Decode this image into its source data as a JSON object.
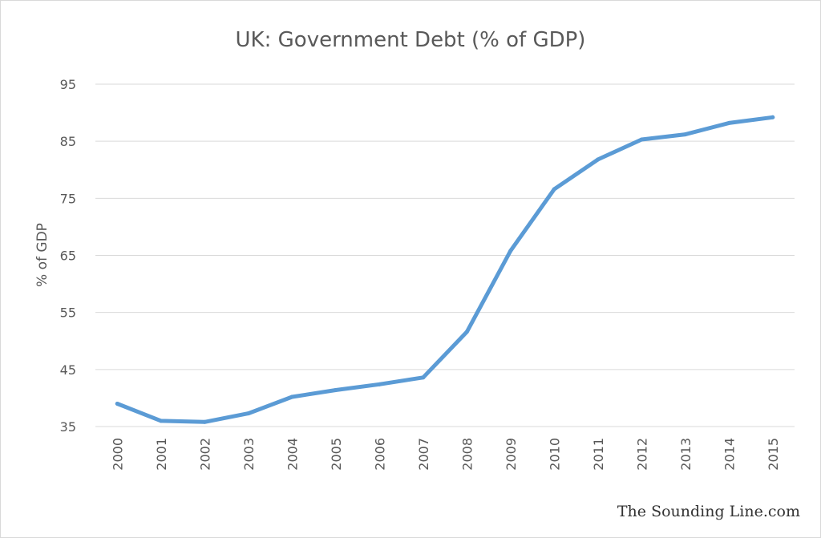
{
  "chart_data": {
    "type": "line",
    "title": "UK: Government Debt (% of GDP)",
    "xlabel": "",
    "ylabel": "% of GDP",
    "categories": [
      "2000",
      "2001",
      "2002",
      "2003",
      "2004",
      "2005",
      "2006",
      "2007",
      "2008",
      "2009",
      "2010",
      "2011",
      "2012",
      "2013",
      "2014",
      "2015"
    ],
    "series": [
      {
        "values": [
          39.0,
          36.0,
          35.8,
          37.3,
          40.2,
          41.4,
          42.4,
          43.6,
          51.6,
          65.8,
          76.6,
          81.8,
          85.3,
          86.2,
          88.2,
          89.2
        ]
      }
    ],
    "yticks": [
      35,
      45,
      55,
      65,
      75,
      85,
      95
    ],
    "ylim": [
      35,
      95
    ],
    "grid": true,
    "legend": "none",
    "line_color": "#5b9bd5",
    "grid_color": "#d9d9d9"
  },
  "watermark": "The Sounding Line.com"
}
